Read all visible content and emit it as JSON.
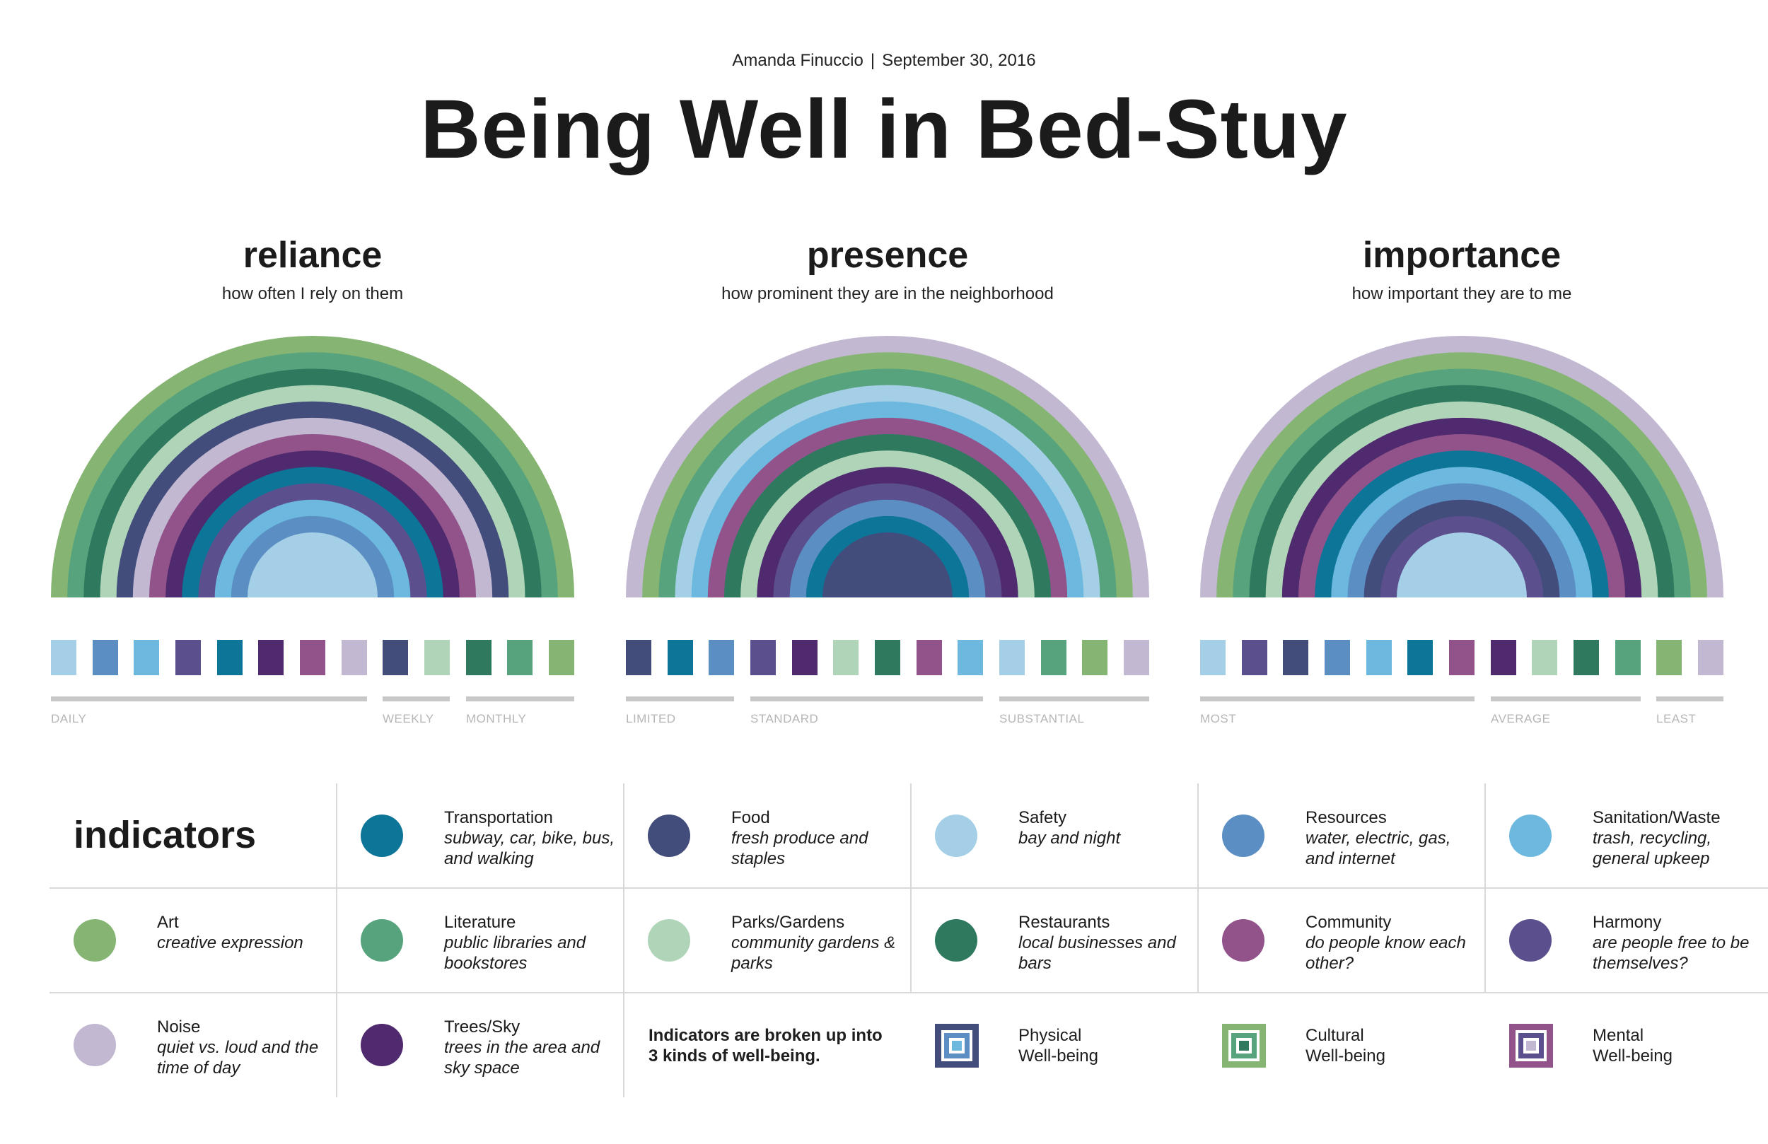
{
  "header": {
    "author": "Amanda Finuccio",
    "separator": "|",
    "date": "September 30, 2016",
    "title": "Being Well in Bed-Stuy"
  },
  "colors": {
    "art": "#86b472",
    "transportation": "#0d7598",
    "food": "#424d7c",
    "safety": "#a5cfe6",
    "resources": "#5b8fc4",
    "sanitation": "#6cb8df",
    "literature": "#56a37e",
    "parks": "#b0d4b8",
    "restaurants": "#2f7a5f",
    "community": "#91538a",
    "harmony": "#5c4f8d",
    "noise": "#c2b8d2",
    "trees": "#502a6e"
  },
  "panels": [
    {
      "id": "reliance",
      "title": "reliance",
      "subtitle": "how often I rely on them",
      "order": [
        "safety",
        "resources",
        "sanitation",
        "harmony",
        "transportation",
        "trees",
        "community",
        "noise",
        "food",
        "parks",
        "restaurants",
        "literature",
        "art"
      ],
      "scale": [
        {
          "label": "DAILY",
          "from": 0,
          "to": 7
        },
        {
          "label": "WEEKLY",
          "from": 8,
          "to": 9
        },
        {
          "label": "MONTHLY",
          "from": 10,
          "to": 12
        }
      ]
    },
    {
      "id": "presence",
      "title": "presence",
      "subtitle": "how prominent they are in the neighborhood",
      "order": [
        "food",
        "transportation",
        "resources",
        "harmony",
        "trees",
        "parks",
        "restaurants",
        "community",
        "sanitation",
        "safety",
        "literature",
        "art",
        "noise"
      ],
      "scale": [
        {
          "label": "LIMITED",
          "from": 0,
          "to": 2
        },
        {
          "label": "STANDARD",
          "from": 3,
          "to": 8
        },
        {
          "label": "SUBSTANTIAL",
          "from": 9,
          "to": 12
        }
      ]
    },
    {
      "id": "importance",
      "title": "importance",
      "subtitle": "how important they are to me",
      "order": [
        "safety",
        "harmony",
        "food",
        "resources",
        "sanitation",
        "transportation",
        "community",
        "trees",
        "parks",
        "restaurants",
        "literature",
        "art",
        "noise"
      ],
      "scale": [
        {
          "label": "MOST",
          "from": 0,
          "to": 6
        },
        {
          "label": "AVERAGE",
          "from": 7,
          "to": 10
        },
        {
          "label": "LEAST",
          "from": 11,
          "to": 12
        }
      ]
    }
  ],
  "indicators": {
    "title": "indicators",
    "items": [
      {
        "key": "transportation",
        "name": "Transportation",
        "desc": "subway, car, bike, bus, and walking"
      },
      {
        "key": "food",
        "name": "Food",
        "desc": "fresh produce and staples"
      },
      {
        "key": "safety",
        "name": "Safety",
        "desc": "bay and night"
      },
      {
        "key": "resources",
        "name": "Resources",
        "desc": "water, electric, gas, and internet"
      },
      {
        "key": "sanitation",
        "name": "Sanitation/Waste",
        "desc": "trash, recycling, general upkeep"
      },
      {
        "key": "art",
        "name": "Art",
        "desc": "creative expression"
      },
      {
        "key": "literature",
        "name": "Literature",
        "desc": "public libraries and bookstores"
      },
      {
        "key": "parks",
        "name": "Parks/Gardens",
        "desc": "community gardens & parks"
      },
      {
        "key": "restaurants",
        "name": "Restaurants",
        "desc": "local businesses and bars"
      },
      {
        "key": "community",
        "name": "Community",
        "desc": "do people know each other?"
      },
      {
        "key": "harmony",
        "name": "Harmony",
        "desc": "are people free to be themselves?"
      },
      {
        "key": "noise",
        "name": "Noise",
        "desc": "quiet vs. loud and the time of day"
      },
      {
        "key": "trees",
        "name": "Trees/Sky",
        "desc": "trees in the area and sky space"
      }
    ],
    "note": "Indicators are broken up into 3 kinds of well-being.",
    "wellbeing": [
      {
        "name": "Physical Well-being",
        "colors": [
          "#424d7c",
          "#ffffff",
          "#5b8fc4",
          "#ffffff",
          "#6cb8df"
        ]
      },
      {
        "name": "Cultural Well-being",
        "colors": [
          "#86b472",
          "#ffffff",
          "#56a37e",
          "#ffffff",
          "#2f7a5f"
        ]
      },
      {
        "name": "Mental Well-being",
        "colors": [
          "#91538a",
          "#ffffff",
          "#5c4f8d",
          "#ffffff",
          "#c2b8d2"
        ]
      }
    ]
  }
}
